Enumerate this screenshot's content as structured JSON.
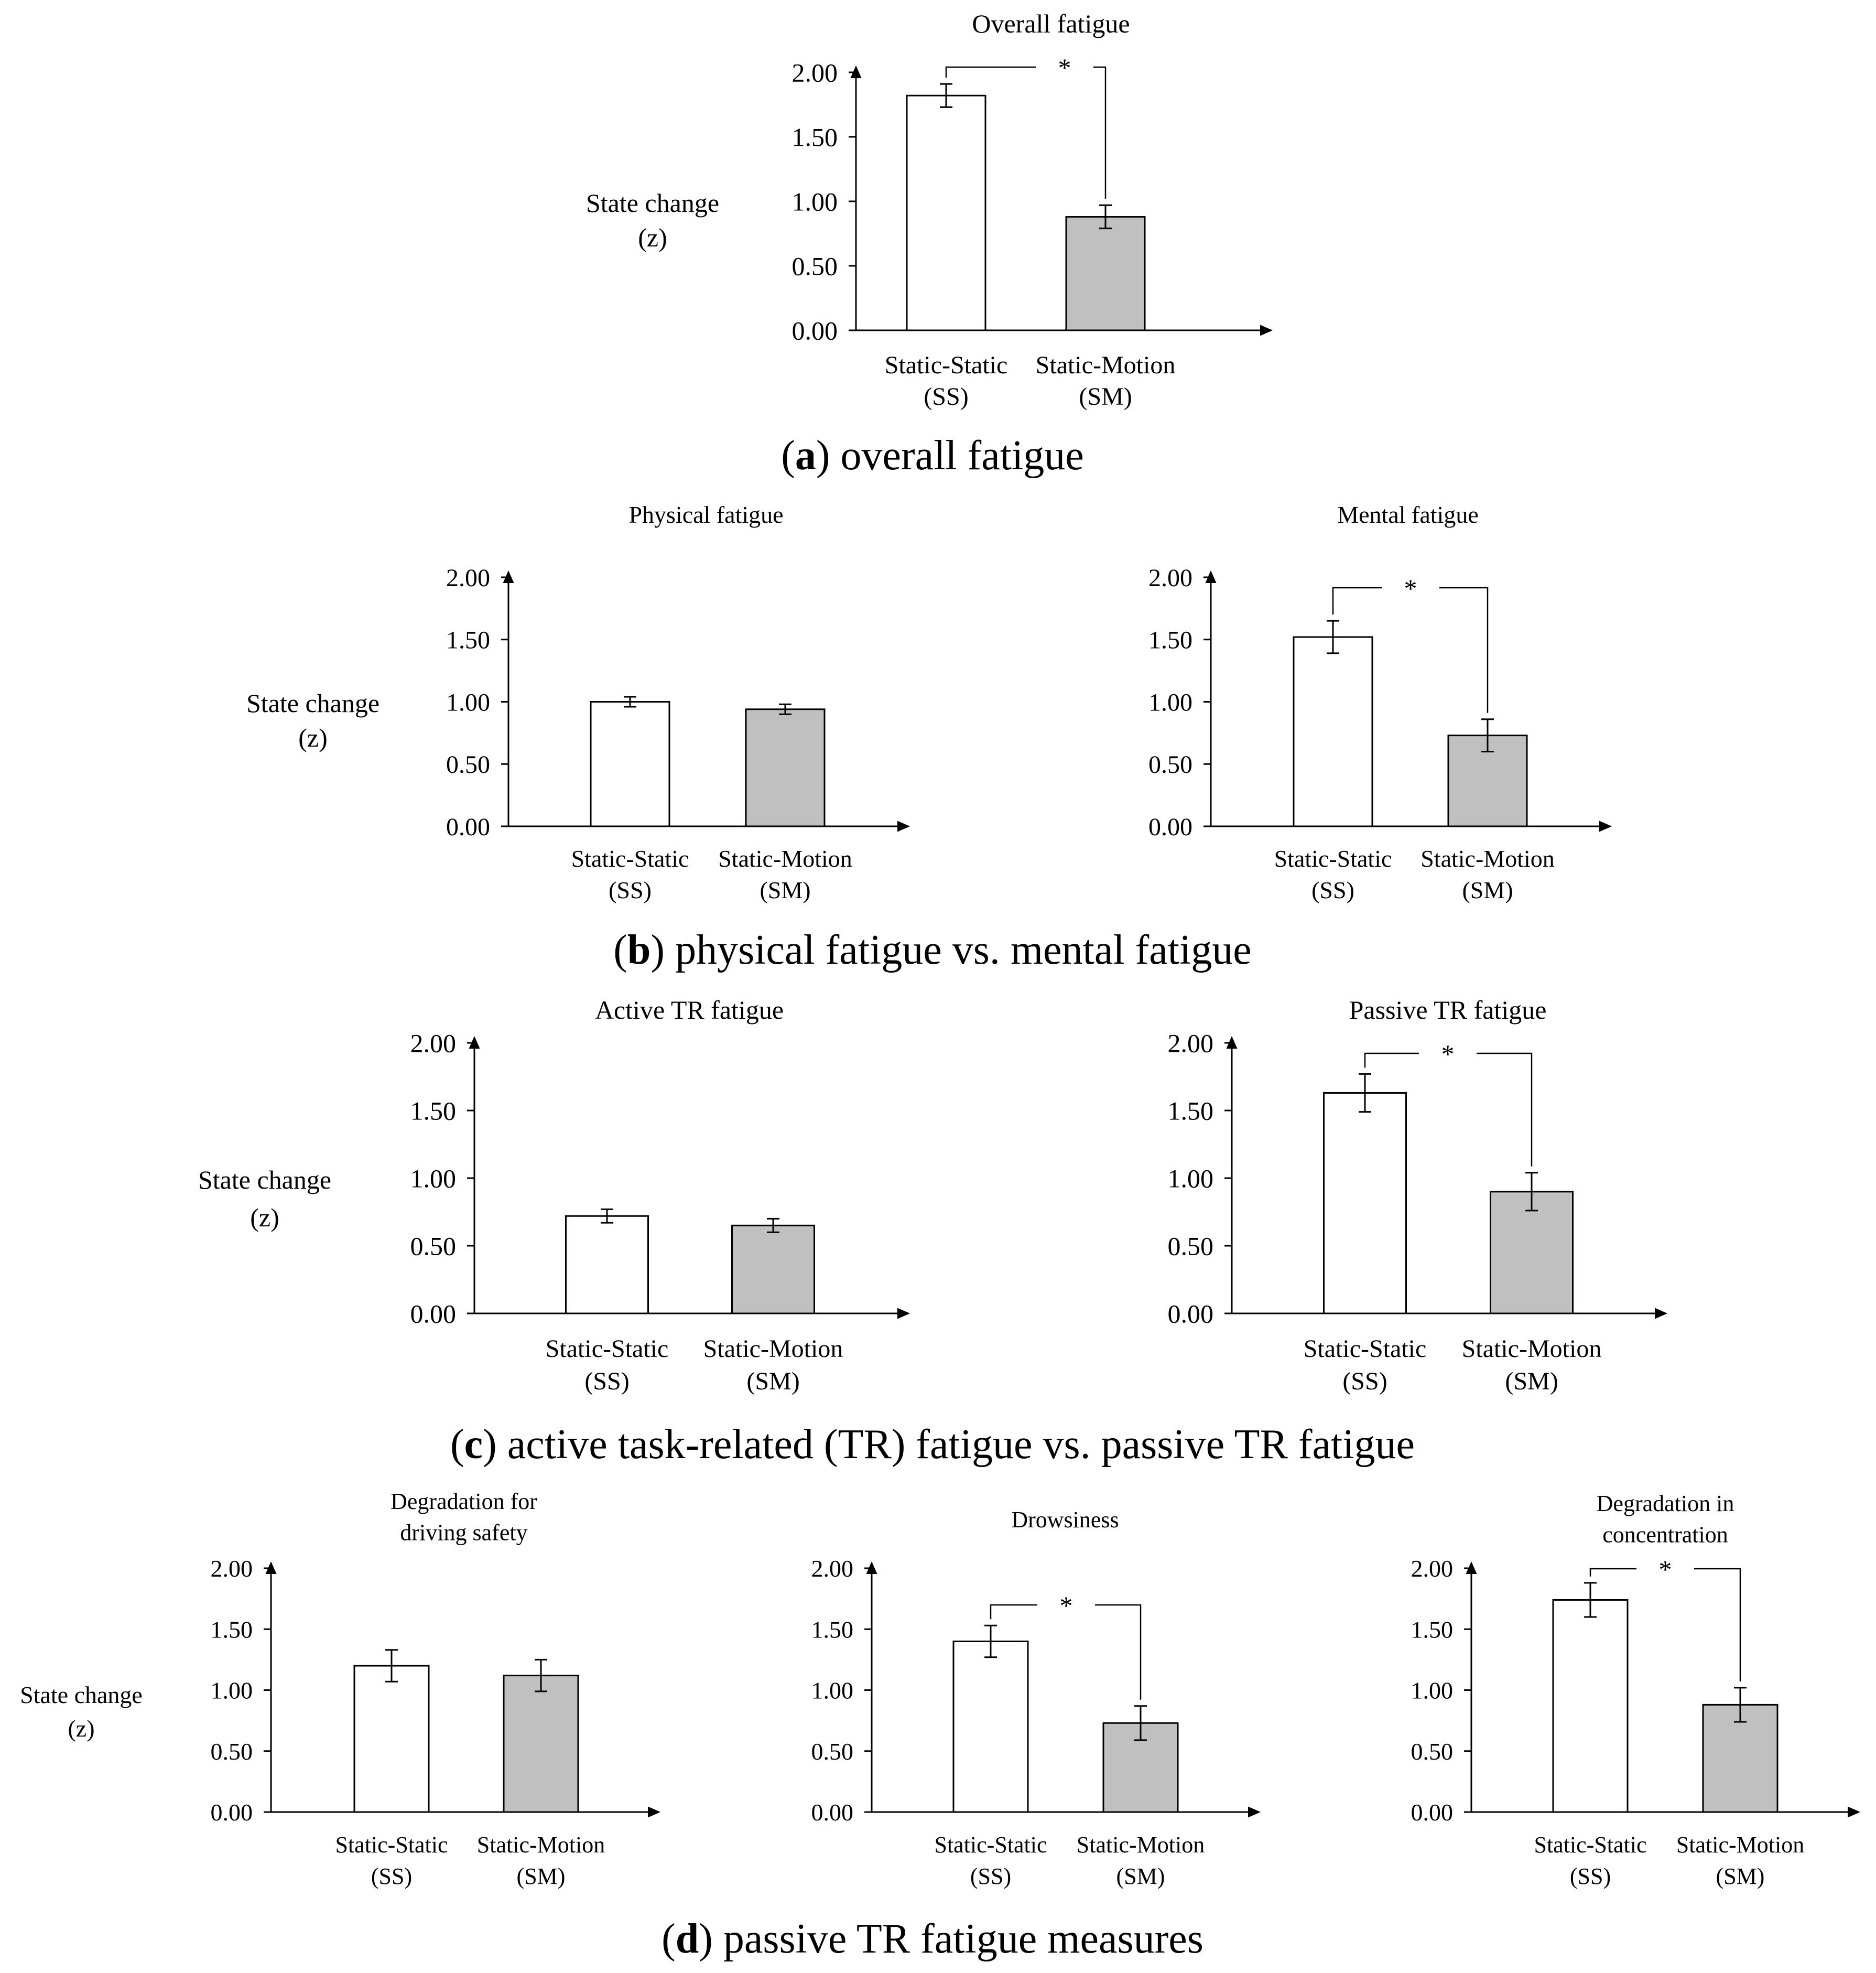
{
  "figure": {
    "colors": {
      "ss_fill": "#ffffff",
      "sm_fill": "#c0c0c0",
      "stroke": "#000000"
    },
    "captions": [
      {
        "letter": "a",
        "text": ") overall fatigue"
      },
      {
        "letter": "b",
        "text": ") physical fatigue vs. mental fatigue"
      },
      {
        "letter": "c",
        "text": ") active task-related (TR) fatigue vs. passive TR fatigue"
      },
      {
        "letter": "d",
        "text": ") passive TR fatigue measures"
      }
    ],
    "ylabels": {
      "a": [
        "State change",
        "(z)"
      ],
      "b": [
        "State change",
        "(z)"
      ],
      "c": [
        "State change",
        "(z)"
      ],
      "d": [
        "State change",
        "(z)"
      ]
    }
  },
  "chart_data": [
    {
      "id": "overall",
      "type": "bar",
      "title": [
        "Overall  fatigue"
      ],
      "categories": [
        [
          "Static-Static",
          "(SS)"
        ],
        [
          "Static-Motion",
          "(SM)"
        ]
      ],
      "values": [
        1.82,
        0.88
      ],
      "errors": [
        0.09,
        0.09
      ],
      "ylim": [
        0,
        2
      ],
      "yticks": [
        "0.00",
        "0.50",
        "1.00",
        "1.50",
        "2.00"
      ],
      "significance": "*"
    },
    {
      "id": "physical",
      "type": "bar",
      "title": [
        "Physical  fatigue"
      ],
      "categories": [
        [
          "Static-Static",
          "(SS)"
        ],
        [
          "Static-Motion",
          "(SM)"
        ]
      ],
      "values": [
        1.0,
        0.94
      ],
      "errors": [
        0.04,
        0.04
      ],
      "ylim": [
        0,
        2
      ],
      "yticks": [
        "0.00",
        "0.50",
        "1.00",
        "1.50",
        "2.00"
      ],
      "significance": null
    },
    {
      "id": "mental",
      "type": "bar",
      "title": [
        "Mental  fatigue"
      ],
      "categories": [
        [
          "Static-Static",
          "(SS)"
        ],
        [
          "Static-Motion",
          "(SM)"
        ]
      ],
      "values": [
        1.52,
        0.73
      ],
      "errors": [
        0.13,
        0.13
      ],
      "ylim": [
        0,
        2
      ],
      "yticks": [
        "0.00",
        "0.50",
        "1.00",
        "1.50",
        "2.00"
      ],
      "significance": "*"
    },
    {
      "id": "active",
      "type": "bar",
      "title": [
        "Active  TR fatigue"
      ],
      "categories": [
        [
          "Static-Static",
          "(SS)"
        ],
        [
          "Static-Motion",
          "(SM)"
        ]
      ],
      "values": [
        0.72,
        0.65
      ],
      "errors": [
        0.05,
        0.05
      ],
      "ylim": [
        0,
        2
      ],
      "yticks": [
        "0.00",
        "0.50",
        "1.00",
        "1.50",
        "2.00"
      ],
      "significance": null
    },
    {
      "id": "passive",
      "type": "bar",
      "title": [
        "Passive  TR fatigue"
      ],
      "categories": [
        [
          "Static-Static",
          "(SS)"
        ],
        [
          "Static-Motion",
          "(SM)"
        ]
      ],
      "values": [
        1.63,
        0.9
      ],
      "errors": [
        0.14,
        0.14
      ],
      "ylim": [
        0,
        2
      ],
      "yticks": [
        "0.00",
        "0.50",
        "1.00",
        "1.50",
        "2.00"
      ],
      "significance": "*"
    },
    {
      "id": "driving",
      "type": "bar",
      "title": [
        "Degradation  for",
        "driving  safety"
      ],
      "categories": [
        [
          "Static-Static",
          "(SS)"
        ],
        [
          "Static-Motion",
          "(SM)"
        ]
      ],
      "values": [
        1.2,
        1.12
      ],
      "errors": [
        0.13,
        0.13
      ],
      "ylim": [
        0,
        2
      ],
      "yticks": [
        "0.00",
        "0.50",
        "1.00",
        "1.50",
        "2.00"
      ],
      "significance": null
    },
    {
      "id": "drowsiness",
      "type": "bar",
      "title": [
        "Drowsiness"
      ],
      "categories": [
        [
          "Static-Static",
          "(SS)"
        ],
        [
          "Static-Motion",
          "(SM)"
        ]
      ],
      "values": [
        1.4,
        0.73
      ],
      "errors": [
        0.13,
        0.14
      ],
      "ylim": [
        0,
        2
      ],
      "yticks": [
        "0.00",
        "0.50",
        "1.00",
        "1.50",
        "2.00"
      ],
      "significance": "*"
    },
    {
      "id": "concentration",
      "type": "bar",
      "title": [
        "Degradation  in",
        "concentration"
      ],
      "categories": [
        [
          "Static-Static",
          "(SS)"
        ],
        [
          "Static-Motion",
          "(SM)"
        ]
      ],
      "values": [
        1.74,
        0.88
      ],
      "errors": [
        0.14,
        0.14
      ],
      "ylim": [
        0,
        2
      ],
      "yticks": [
        "0.00",
        "0.50",
        "1.00",
        "1.50",
        "2.00"
      ],
      "significance": "*"
    }
  ]
}
